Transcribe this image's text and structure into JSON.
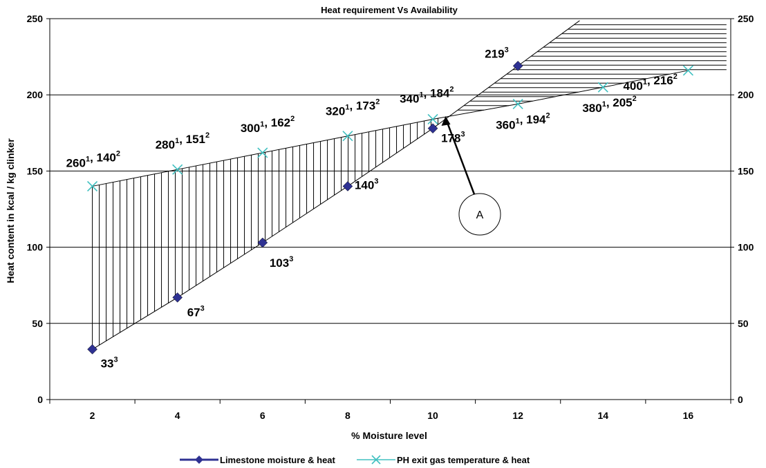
{
  "chart_data": {
    "type": "line",
    "title": "Heat requirement Vs Availability",
    "xlabel": "% Moisture level",
    "ylabel": "Heat content in kcal / kg clinker",
    "xlim": [
      1,
      17
    ],
    "ylim": [
      0,
      250
    ],
    "x_ticks": [
      2,
      4,
      6,
      8,
      10,
      12,
      14,
      16
    ],
    "y_ticks": [
      0,
      50,
      100,
      150,
      200,
      250
    ],
    "y2_ticks": [
      0,
      50,
      100,
      150,
      200,
      250
    ],
    "grid": "horizontal",
    "legend_position": "bottom",
    "series": [
      {
        "name": "Limestone moisture & heat",
        "color": "#2e3192",
        "marker": "diamond",
        "x": [
          2,
          4,
          6,
          8,
          10,
          12
        ],
        "y": [
          33,
          67,
          103,
          140,
          178,
          219
        ],
        "labels": [
          {
            "text": "33",
            "sup": "3"
          },
          {
            "text": "67",
            "sup": "3"
          },
          {
            "text": "103",
            "sup": "3"
          },
          {
            "text": "140",
            "sup": "3"
          },
          {
            "text": "178",
            "sup": "3"
          },
          {
            "text": "219",
            "sup": "3"
          }
        ]
      },
      {
        "name": "PH exit gas temperature & heat",
        "color": "#40c0c0",
        "marker": "x",
        "x": [
          2,
          4,
          6,
          8,
          10,
          12,
          14,
          16
        ],
        "y": [
          140,
          151,
          162,
          173,
          184,
          194,
          205,
          216
        ],
        "labels": [
          {
            "parts": [
              {
                "text": "260"
              },
              {
                "sup": "1"
              },
              {
                "text": ", 140"
              },
              {
                "sup": "2"
              }
            ]
          },
          {
            "parts": [
              {
                "text": "280"
              },
              {
                "sup": "1"
              },
              {
                "text": ", 151"
              },
              {
                "sup": "2"
              }
            ]
          },
          {
            "parts": [
              {
                "text": "300"
              },
              {
                "sup": "1"
              },
              {
                "text": ", 162"
              },
              {
                "sup": "2"
              }
            ]
          },
          {
            "parts": [
              {
                "text": "320"
              },
              {
                "sup": "1"
              },
              {
                "text": ", 173"
              },
              {
                "sup": "2"
              }
            ]
          },
          {
            "parts": [
              {
                "text": "340"
              },
              {
                "sup": "1"
              },
              {
                "text": ", 184"
              },
              {
                "sup": "2"
              }
            ]
          },
          {
            "parts": [
              {
                "text": "360"
              },
              {
                "sup": "1"
              },
              {
                "text": ", 194"
              },
              {
                "sup": "2"
              }
            ]
          },
          {
            "parts": [
              {
                "text": "380"
              },
              {
                "sup": "1"
              },
              {
                "text": ", 205"
              },
              {
                "sup": "2"
              }
            ]
          },
          {
            "parts": [
              {
                "text": "400"
              },
              {
                "sup": "1"
              },
              {
                "text": ", 216"
              },
              {
                "sup": "2"
              }
            ]
          }
        ]
      }
    ],
    "annotations": [
      {
        "text": "A",
        "points_to": {
          "x": 10.3,
          "y": 186
        }
      }
    ]
  }
}
